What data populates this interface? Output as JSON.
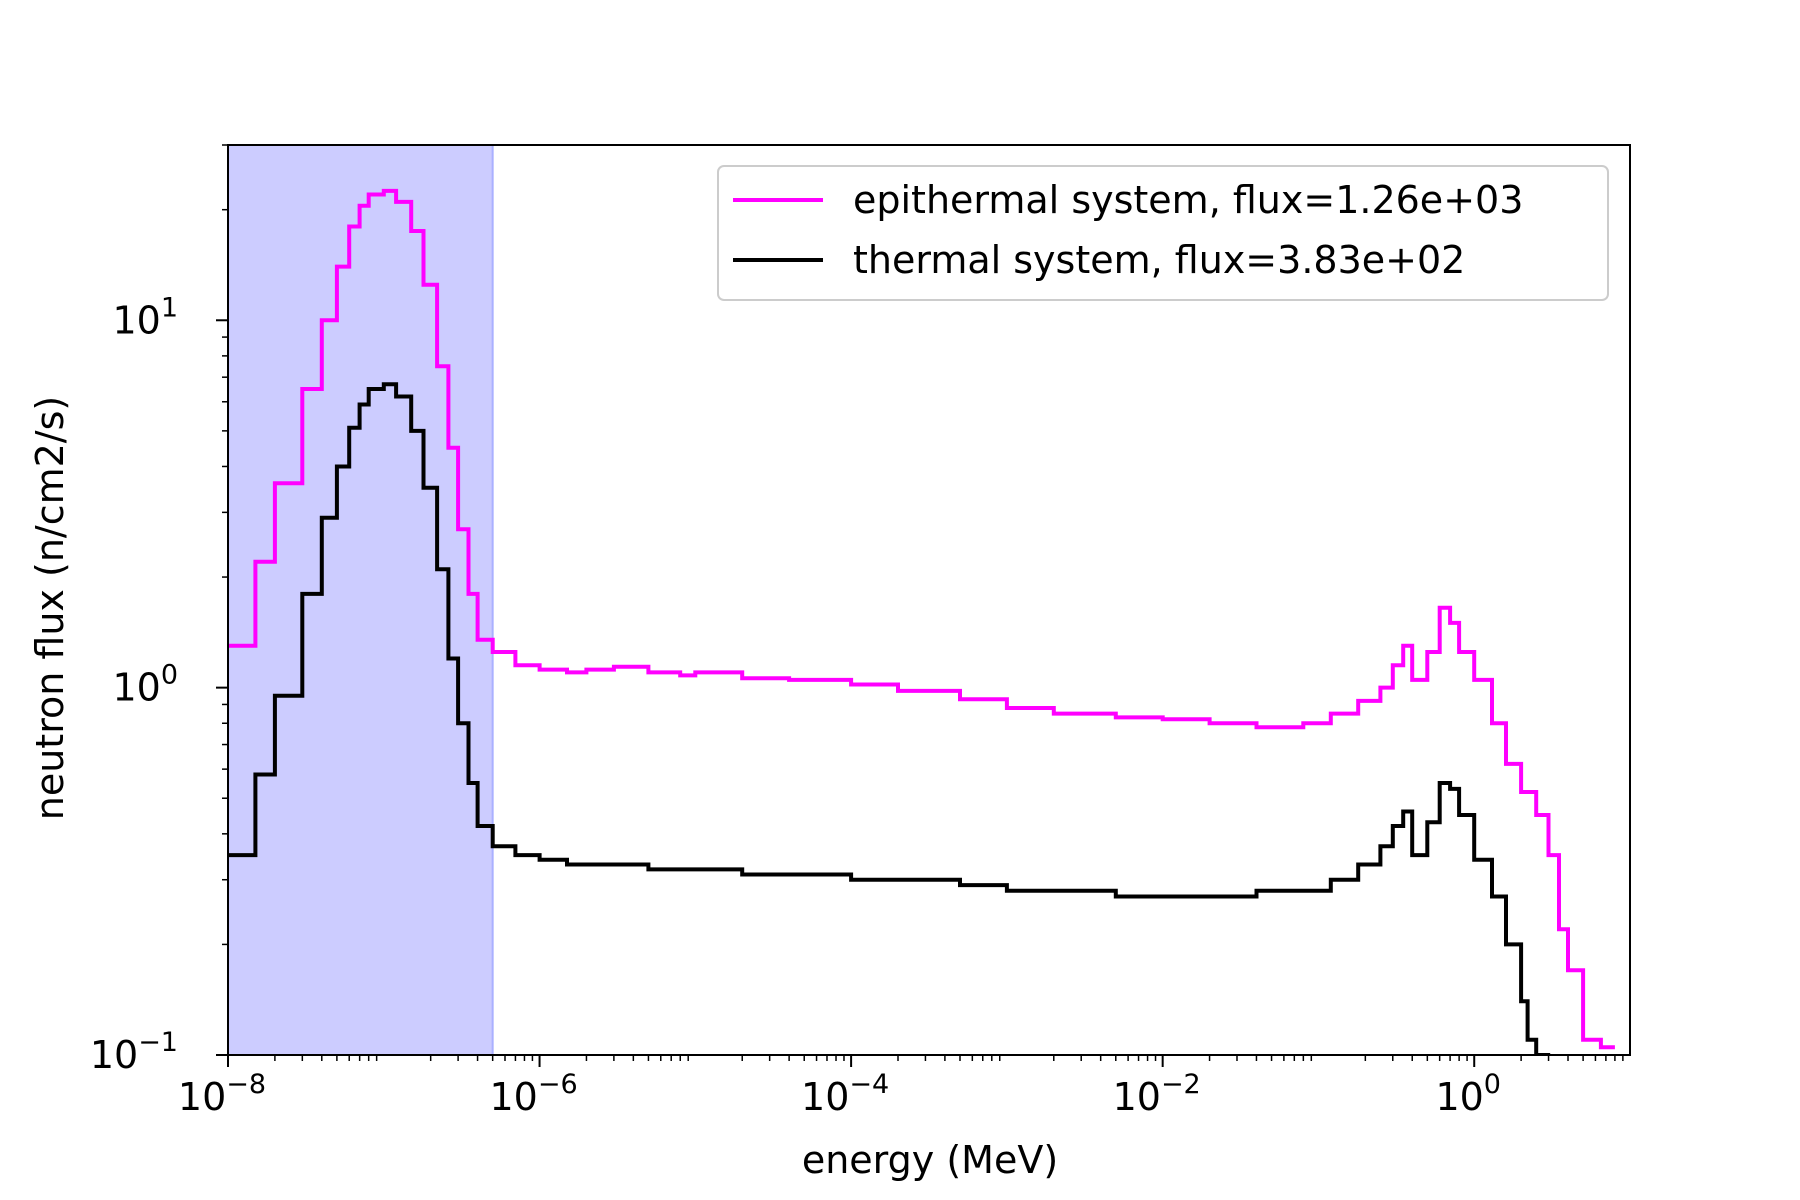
{
  "chart_data": {
    "type": "line",
    "xlabel": "energy (MeV)",
    "ylabel": "neutron flux (n/cm2/s)",
    "x_scale": "log",
    "y_scale": "log",
    "xlim": [
      1e-08,
      10
    ],
    "ylim": [
      0.1,
      30
    ],
    "x_ticks": [
      {
        "value": 1e-08,
        "base": "10",
        "exp": "−8"
      },
      {
        "value": 1e-06,
        "base": "10",
        "exp": "−6"
      },
      {
        "value": 0.0001,
        "base": "10",
        "exp": "−4"
      },
      {
        "value": 0.01,
        "base": "10",
        "exp": "−2"
      },
      {
        "value": 1,
        "base": "10",
        "exp": "0"
      }
    ],
    "y_ticks": [
      {
        "value": 0.1,
        "base": "10",
        "exp": "−1"
      },
      {
        "value": 1,
        "base": "10",
        "exp": "0"
      },
      {
        "value": 10,
        "base": "10",
        "exp": "1"
      }
    ],
    "grid": false,
    "legend_position": "top-right",
    "shaded_region": {
      "x": [
        1e-08,
        5e-07
      ],
      "color": "#ccccff"
    },
    "series": [
      {
        "name": "epithermal system, flux=1.26e+03",
        "color": "#ff00ff",
        "style": "step",
        "x": [
          1e-08,
          1.5e-08,
          2e-08,
          3e-08,
          4e-08,
          5e-08,
          6e-08,
          7e-08,
          8e-08,
          1e-07,
          1.2e-07,
          1.5e-07,
          1.8e-07,
          2.2e-07,
          2.6e-07,
          3e-07,
          3.5e-07,
          4e-07,
          5e-07,
          7e-07,
          1e-06,
          1.5e-06,
          2e-06,
          3e-06,
          5e-06,
          8e-06,
          1e-05,
          2e-05,
          4e-05,
          0.0001,
          0.0002,
          0.0005,
          0.001,
          0.002,
          0.005,
          0.01,
          0.02,
          0.04,
          0.08,
          0.12,
          0.18,
          0.25,
          0.3,
          0.35,
          0.4,
          0.5,
          0.6,
          0.7,
          0.8,
          1.0,
          1.3,
          1.6,
          2.0,
          2.5,
          3.0,
          3.5,
          4.0,
          5.0,
          6.5
        ],
        "values": [
          1.3,
          2.2,
          3.6,
          6.5,
          10.0,
          14.0,
          18.0,
          20.5,
          22.0,
          22.5,
          21.0,
          17.5,
          12.5,
          7.5,
          4.5,
          2.7,
          1.8,
          1.35,
          1.25,
          1.15,
          1.12,
          1.1,
          1.12,
          1.14,
          1.1,
          1.08,
          1.1,
          1.06,
          1.05,
          1.02,
          0.98,
          0.93,
          0.88,
          0.85,
          0.83,
          0.82,
          0.8,
          0.78,
          0.8,
          0.85,
          0.92,
          1.0,
          1.15,
          1.3,
          1.05,
          1.25,
          1.65,
          1.5,
          1.25,
          1.05,
          0.8,
          0.62,
          0.52,
          0.45,
          0.35,
          0.22,
          0.17,
          0.11,
          0.105
        ]
      },
      {
        "name": "thermal system, flux=3.83e+02",
        "color": "#000000",
        "style": "step",
        "x": [
          1e-08,
          1.5e-08,
          2e-08,
          3e-08,
          4e-08,
          5e-08,
          6e-08,
          7e-08,
          8e-08,
          1e-07,
          1.2e-07,
          1.5e-07,
          1.8e-07,
          2.2e-07,
          2.6e-07,
          3e-07,
          3.5e-07,
          4e-07,
          5e-07,
          7e-07,
          1e-06,
          1.5e-06,
          2e-06,
          3e-06,
          5e-06,
          8e-06,
          1e-05,
          2e-05,
          4e-05,
          0.0001,
          0.0002,
          0.0005,
          0.001,
          0.002,
          0.005,
          0.01,
          0.02,
          0.04,
          0.08,
          0.12,
          0.18,
          0.25,
          0.3,
          0.35,
          0.4,
          0.5,
          0.6,
          0.7,
          0.8,
          1.0,
          1.3,
          1.6,
          2.0,
          2.2,
          2.5
        ],
        "values": [
          0.35,
          0.58,
          0.95,
          1.8,
          2.9,
          4.0,
          5.1,
          5.9,
          6.5,
          6.7,
          6.2,
          5.0,
          3.5,
          2.1,
          1.2,
          0.8,
          0.55,
          0.42,
          0.37,
          0.35,
          0.34,
          0.33,
          0.33,
          0.33,
          0.32,
          0.32,
          0.32,
          0.31,
          0.31,
          0.3,
          0.3,
          0.29,
          0.28,
          0.28,
          0.27,
          0.27,
          0.27,
          0.28,
          0.28,
          0.3,
          0.33,
          0.37,
          0.42,
          0.46,
          0.35,
          0.43,
          0.55,
          0.53,
          0.45,
          0.34,
          0.27,
          0.2,
          0.14,
          0.11,
          0.1
        ]
      }
    ]
  }
}
